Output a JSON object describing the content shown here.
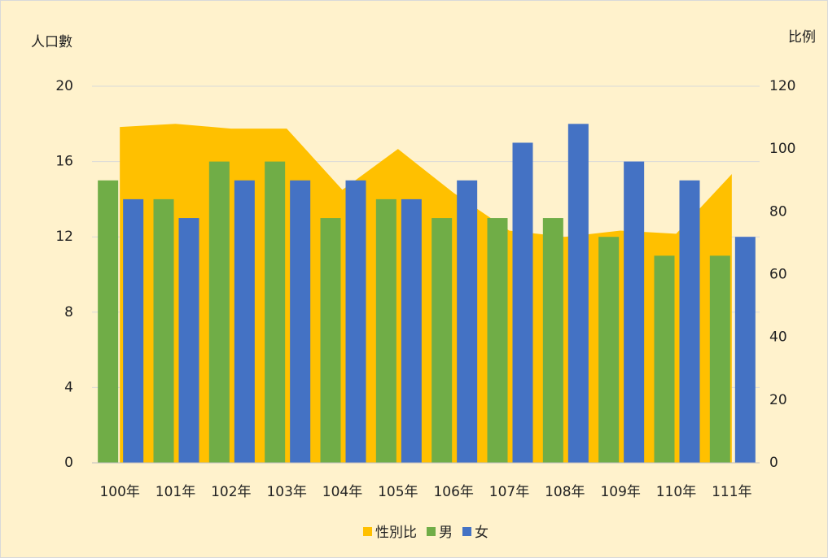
{
  "chart_data": {
    "type": "bar-area",
    "y_label": "人口數",
    "y2_label": "比例",
    "categories": [
      "100年",
      "101年",
      "102年",
      "103年",
      "104年",
      "105年",
      "106年",
      "107年",
      "108年",
      "109年",
      "110年",
      "111年"
    ],
    "series": [
      {
        "name": "性別比",
        "type": "area",
        "axis": "y2",
        "color": "#ffc000",
        "values": [
          107,
          108,
          106.5,
          106.5,
          87,
          100,
          86,
          74,
          72,
          74,
          73,
          92
        ]
      },
      {
        "name": "男",
        "type": "bar",
        "color": "#70ad47",
        "values": [
          15,
          14,
          16,
          16,
          13,
          14,
          13,
          13,
          13,
          12,
          11,
          11
        ]
      },
      {
        "name": "女",
        "type": "bar",
        "color": "#4472c4",
        "values": [
          14,
          13,
          15,
          15,
          15,
          14,
          15,
          17,
          18,
          16,
          15,
          12
        ]
      }
    ],
    "ylim": [
      0,
      20
    ],
    "yticks": [
      0,
      4,
      8,
      12,
      16,
      20
    ],
    "y2lim": [
      0,
      120
    ],
    "y2ticks": [
      0,
      20,
      40,
      60,
      80,
      100,
      120
    ],
    "grid": true,
    "legend": "bottom"
  }
}
